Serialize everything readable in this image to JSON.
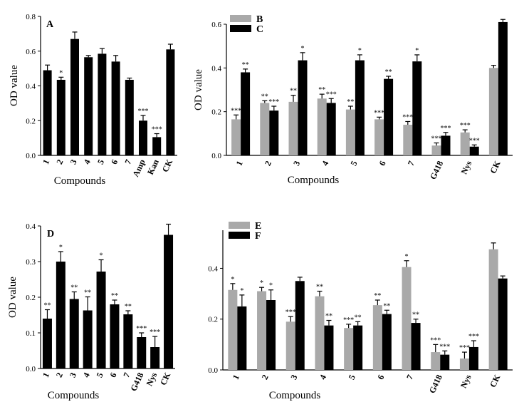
{
  "chart_data": [
    {
      "id": "A",
      "type": "bar",
      "panel_label": "A",
      "xlabel": "Compounds",
      "ylabel": "OD value",
      "ylim": [
        0,
        0.8
      ],
      "yticks": [
        "0.0",
        "0.2",
        "0.4",
        "0.6",
        "0.8"
      ],
      "categories": [
        "1",
        "2",
        "3",
        "4",
        "5",
        "6",
        "7",
        "Amp",
        "Kan",
        "CK"
      ],
      "series": [
        {
          "name": "A",
          "color": "#000000",
          "values": [
            0.49,
            0.435,
            0.67,
            0.565,
            0.585,
            0.54,
            0.435,
            0.2,
            0.105,
            0.61
          ],
          "errors": [
            0.03,
            0.015,
            0.04,
            0.01,
            0.03,
            0.035,
            0.01,
            0.03,
            0.02,
            0.03
          ],
          "labels": [
            "",
            "*",
            "",
            "",
            "",
            "",
            "",
            "***",
            "***",
            ""
          ]
        }
      ]
    },
    {
      "id": "BC",
      "type": "bar",
      "xlabel": "Compounds",
      "ylabel": "OD value",
      "ylim": [
        0,
        0.6
      ],
      "yticks": [
        "0.0",
        "0.2",
        "0.4",
        "0.6"
      ],
      "categories": [
        "1",
        "2",
        "3",
        "4",
        "5",
        "6",
        "7",
        "G418",
        "Nys",
        "CK"
      ],
      "legend": [
        "B",
        "C"
      ],
      "series": [
        {
          "name": "B",
          "color": "#a9a9a9",
          "values": [
            0.165,
            0.24,
            0.245,
            0.26,
            0.21,
            0.165,
            0.14,
            0.045,
            0.105,
            0.4
          ],
          "errors": [
            0.02,
            0.01,
            0.03,
            0.02,
            0.015,
            0.01,
            0.015,
            0.012,
            0.012,
            0.012
          ],
          "labels": [
            "***",
            "**",
            "**",
            "**",
            "**",
            "***",
            "***",
            "***",
            "***",
            ""
          ]
        },
        {
          "name": "C",
          "color": "#000000",
          "values": [
            0.38,
            0.205,
            0.435,
            0.24,
            0.435,
            0.35,
            0.43,
            0.09,
            0.04,
            0.61
          ],
          "errors": [
            0.015,
            0.02,
            0.035,
            0.02,
            0.025,
            0.012,
            0.03,
            0.015,
            0.008,
            0.012
          ],
          "labels": [
            "**",
            "***",
            "*",
            "***",
            "*",
            "**",
            "*",
            "***",
            "***",
            ""
          ]
        }
      ]
    },
    {
      "id": "D",
      "type": "bar",
      "panel_label": "D",
      "xlabel": "Compounds",
      "ylabel": "OD value",
      "ylim": [
        0,
        0.4
      ],
      "yticks": [
        "0.0",
        "0.1",
        "0.2",
        "0.3",
        "0.4"
      ],
      "categories": [
        "1",
        "2",
        "3",
        "4",
        "5",
        "6",
        "7",
        "G418",
        "Nys",
        "CK"
      ],
      "series": [
        {
          "name": "D",
          "color": "#000000",
          "values": [
            0.14,
            0.3,
            0.195,
            0.163,
            0.272,
            0.18,
            0.152,
            0.088,
            0.06,
            0.375
          ],
          "errors": [
            0.025,
            0.028,
            0.02,
            0.038,
            0.033,
            0.012,
            0.01,
            0.012,
            0.03,
            0.03
          ],
          "labels": [
            "**",
            "*",
            "**",
            "**",
            "*",
            "**",
            "**",
            "***",
            "***",
            ""
          ]
        }
      ]
    },
    {
      "id": "EF",
      "type": "bar",
      "xlabel": "Compounds",
      "ylabel": "",
      "ylim": [
        0,
        0.55
      ],
      "yticks": [
        "0.0",
        "0.2",
        "0.4"
      ],
      "categories": [
        "1",
        "2",
        "3",
        "4",
        "5",
        "6",
        "7",
        "G418",
        "Nys",
        "CK"
      ],
      "legend": [
        "E",
        "F"
      ],
      "series": [
        {
          "name": "E",
          "color": "#a9a9a9",
          "values": [
            0.315,
            0.31,
            0.19,
            0.29,
            0.165,
            0.255,
            0.405,
            0.07,
            0.045,
            0.475
          ],
          "errors": [
            0.025,
            0.015,
            0.02,
            0.02,
            0.015,
            0.02,
            0.025,
            0.03,
            0.025,
            0.025
          ],
          "labels": [
            "*",
            "*",
            "***",
            "**",
            "***",
            "**",
            "*",
            "***",
            "***",
            ""
          ]
        },
        {
          "name": "F",
          "color": "#000000",
          "values": [
            0.25,
            0.275,
            0.35,
            0.175,
            0.175,
            0.22,
            0.185,
            0.06,
            0.09,
            0.36
          ],
          "errors": [
            0.045,
            0.04,
            0.015,
            0.02,
            0.015,
            0.015,
            0.015,
            0.015,
            0.025,
            0.01
          ],
          "labels": [
            "*",
            "*",
            "",
            "**",
            "**",
            "**",
            "**",
            "***",
            "***",
            ""
          ]
        }
      ]
    }
  ]
}
